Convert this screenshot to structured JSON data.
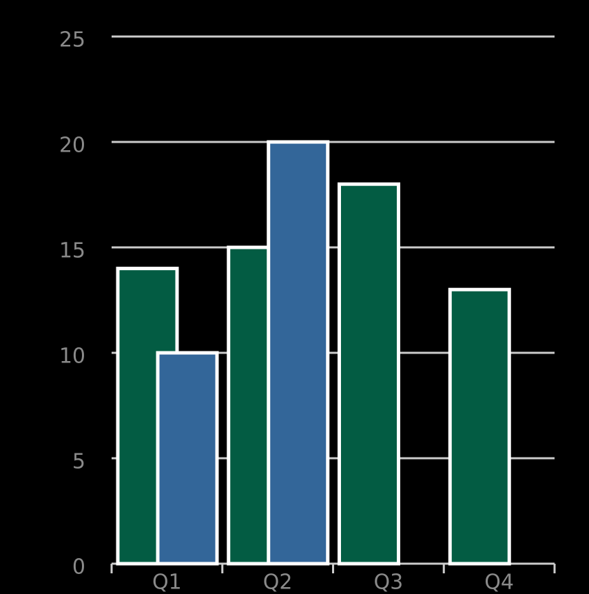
{
  "chart_data": {
    "type": "bar",
    "categories": [
      "Q1",
      "Q2",
      "Q3",
      "Q4"
    ],
    "series": [
      {
        "color": "#035c43",
        "values": [
          14,
          15,
          18,
          13
        ]
      },
      {
        "color": "#336699",
        "values": [
          10,
          20,
          null,
          null
        ]
      }
    ],
    "ylim": [
      0,
      25
    ],
    "yticks": [
      0,
      5,
      10,
      15,
      20,
      25
    ],
    "grid": true
  }
}
